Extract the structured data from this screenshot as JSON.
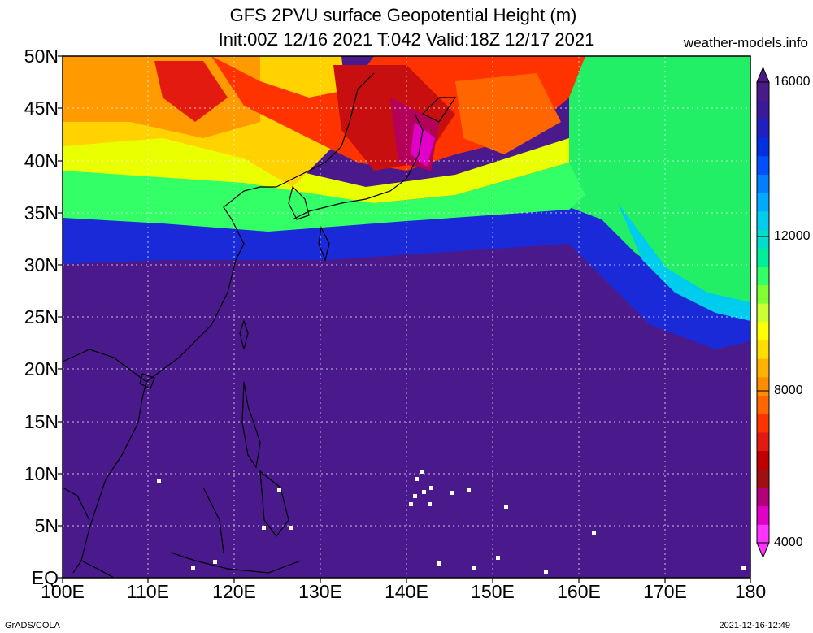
{
  "title": {
    "line1": "GFS 2PVU surface Geopotential Height (m)",
    "line2": "Init:00Z 12/16 2021 T:042 Valid:18Z 12/17 2021",
    "site": "weather-models.info"
  },
  "axes": {
    "lat_labels": [
      "50N",
      "45N",
      "40N",
      "35N",
      "30N",
      "25N",
      "20N",
      "15N",
      "10N",
      "5N",
      "EQ"
    ],
    "lon_labels": [
      "100E",
      "110E",
      "120E",
      "130E",
      "140E",
      "150E",
      "160E",
      "170E",
      "180"
    ]
  },
  "colorbar": {
    "labels": [
      "16000",
      "12000",
      "8000",
      "4000"
    ],
    "colors": [
      "#ff33ff",
      "#e000c8",
      "#b3007a",
      "#a01010",
      "#c00000",
      "#e31a0f",
      "#ff3300",
      "#ff6600",
      "#ff8c00",
      "#ffb300",
      "#ffdd00",
      "#ffff00",
      "#ccff33",
      "#80ff33",
      "#33ff66",
      "#00ee99",
      "#00ddcc",
      "#00ccee",
      "#00aaff",
      "#0080ff",
      "#0050ff",
      "#0030e0",
      "#2020c0",
      "#3a1a9a",
      "#4b1a8a"
    ]
  },
  "footer": {
    "left": "GrADS/COLA",
    "right": "2021-12-16-12:49"
  }
}
